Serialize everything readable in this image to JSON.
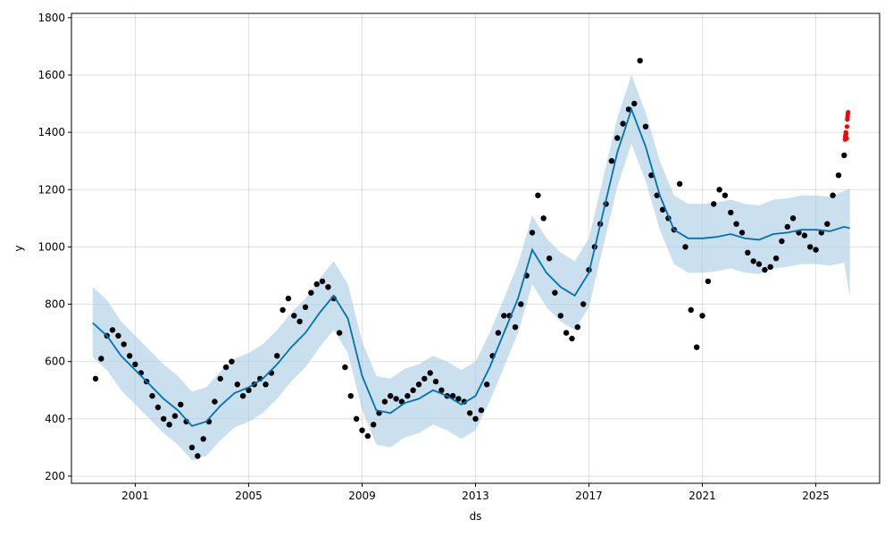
{
  "chart_data": {
    "type": "scatter",
    "xlabel": "ds",
    "ylabel": "y",
    "xlim": [
      1998.75,
      2027.25
    ],
    "ylim": [
      175,
      1815
    ],
    "grid": true,
    "x_ticks": [
      2001,
      2005,
      2009,
      2013,
      2017,
      2021,
      2025
    ],
    "y_ticks": [
      200,
      400,
      600,
      800,
      1000,
      1200,
      1400,
      1600,
      1800
    ],
    "colors": {
      "observed": "#000000",
      "forecast": "#0072b2",
      "interval": "#a6cbe3",
      "outlier": "#ff0000"
    },
    "series": [
      {
        "name": "",
        "kind": "observed",
        "x": [
          1999.6,
          1999.8,
          2000.0,
          2000.2,
          2000.4,
          2000.6,
          2000.8,
          2001.0,
          2001.2,
          2001.4,
          2001.6,
          2001.8,
          2002.0,
          2002.2,
          2002.4,
          2002.6,
          2002.8,
          2003.0,
          2003.2,
          2003.4,
          2003.6,
          2003.8,
          2004.0,
          2004.2,
          2004.4,
          2004.6,
          2004.8,
          2005.0,
          2005.2,
          2005.4,
          2005.6,
          2005.8,
          2006.0,
          2006.2,
          2006.4,
          2006.6,
          2006.8,
          2007.0,
          2007.2,
          2007.4,
          2007.6,
          2007.8,
          2008.0,
          2008.2,
          2008.4,
          2008.6,
          2008.8,
          2009.0,
          2009.2,
          2009.4,
          2009.6,
          2009.8,
          2010.0,
          2010.2,
          2010.4,
          2010.6,
          2010.8,
          2011.0,
          2011.2,
          2011.4,
          2011.6,
          2011.8,
          2012.0,
          2012.2,
          2012.4,
          2012.6,
          2012.8,
          2013.0,
          2013.2,
          2013.4,
          2013.6,
          2013.8,
          2014.0,
          2014.2,
          2014.4,
          2014.6,
          2014.8,
          2015.0,
          2015.2,
          2015.4,
          2015.6,
          2015.8,
          2016.0,
          2016.2,
          2016.4,
          2016.6,
          2016.8,
          2017.0,
          2017.2,
          2017.4,
          2017.6,
          2017.8,
          2018.0,
          2018.2,
          2018.4,
          2018.6,
          2018.8,
          2019.0,
          2019.2,
          2019.4,
          2019.6,
          2019.8,
          2020.0,
          2020.2,
          2020.4,
          2020.6,
          2020.8,
          2021.0,
          2021.2,
          2021.4,
          2021.6,
          2021.8,
          2022.0,
          2022.2,
          2022.4,
          2022.6,
          2022.8,
          2023.0,
          2023.2,
          2023.4,
          2023.6,
          2023.8,
          2024.0,
          2024.2,
          2024.4,
          2024.6,
          2024.8,
          2025.0,
          2025.2,
          2025.4,
          2025.6,
          2025.8,
          2026.0
        ],
        "y": [
          540,
          610,
          690,
          710,
          690,
          660,
          620,
          590,
          560,
          530,
          480,
          440,
          400,
          380,
          410,
          450,
          390,
          300,
          270,
          330,
          390,
          460,
          540,
          580,
          600,
          520,
          480,
          500,
          520,
          540,
          520,
          560,
          620,
          780,
          820,
          760,
          740,
          790,
          840,
          870,
          880,
          860,
          820,
          700,
          580,
          480,
          400,
          360,
          340,
          380,
          420,
          460,
          480,
          470,
          460,
          480,
          500,
          520,
          540,
          560,
          530,
          500,
          480,
          480,
          470,
          460,
          420,
          400,
          430,
          520,
          620,
          700,
          760,
          760,
          720,
          800,
          900,
          1050,
          1180,
          1100,
          960,
          840,
          760,
          700,
          680,
          720,
          800,
          920,
          1000,
          1080,
          1150,
          1300,
          1380,
          1430,
          1480,
          1500,
          1650,
          1420,
          1250,
          1180,
          1130,
          1100,
          1060,
          1220,
          1000,
          780,
          650,
          760,
          880,
          1150,
          1200,
          1180,
          1120,
          1080,
          1050,
          980,
          950,
          940,
          920,
          930,
          960,
          1020,
          1070,
          1100,
          1050,
          1040,
          1000,
          990,
          1050,
          1080,
          1180,
          1250,
          1320
        ]
      },
      {
        "name": "",
        "kind": "outlier",
        "x": [
          2026.03,
          2026.04,
          2026.05,
          2026.06,
          2026.07,
          2026.08,
          2026.09,
          2026.1,
          2026.11,
          2026.12,
          2026.13,
          2026.14
        ],
        "y": [
          1375,
          1385,
          1390,
          1400,
          1395,
          1380,
          1378,
          1420,
          1445,
          1455,
          1465,
          1470
        ]
      },
      {
        "name": "",
        "kind": "forecast",
        "x": [
          1999.5,
          2000.0,
          2000.5,
          2001.0,
          2001.5,
          2002.0,
          2002.5,
          2003.0,
          2003.5,
          2004.0,
          2004.5,
          2005.0,
          2005.5,
          2006.0,
          2006.5,
          2007.0,
          2007.5,
          2008.0,
          2008.5,
          2009.0,
          2009.5,
          2010.0,
          2010.5,
          2011.0,
          2011.5,
          2012.0,
          2012.5,
          2013.0,
          2013.5,
          2014.0,
          2014.5,
          2015.0,
          2015.5,
          2016.0,
          2016.5,
          2017.0,
          2017.5,
          2018.0,
          2018.5,
          2019.0,
          2019.5,
          2020.0,
          2020.5,
          2021.0,
          2021.5,
          2022.0,
          2022.5,
          2023.0,
          2023.5,
          2024.0,
          2024.5,
          2025.0,
          2025.5,
          2026.0,
          2026.2
        ],
        "y": [
          735,
          690,
          620,
          570,
          520,
          470,
          430,
          375,
          390,
          445,
          490,
          510,
          540,
          590,
          650,
          700,
          770,
          830,
          750,
          550,
          430,
          420,
          455,
          470,
          500,
          480,
          450,
          480,
          580,
          700,
          820,
          990,
          910,
          860,
          830,
          910,
          1120,
          1330,
          1480,
          1350,
          1180,
          1060,
          1030,
          1030,
          1035,
          1045,
          1030,
          1025,
          1045,
          1050,
          1060,
          1060,
          1055,
          1070,
          1065
        ]
      },
      {
        "name": "",
        "kind": "interval_upper",
        "x": [
          1999.5,
          2000.0,
          2000.5,
          2001.0,
          2001.5,
          2002.0,
          2002.5,
          2003.0,
          2003.5,
          2004.0,
          2004.5,
          2005.0,
          2005.5,
          2006.0,
          2006.5,
          2007.0,
          2007.5,
          2008.0,
          2008.5,
          2009.0,
          2009.5,
          2010.0,
          2010.5,
          2011.0,
          2011.5,
          2012.0,
          2012.5,
          2013.0,
          2013.5,
          2014.0,
          2014.5,
          2015.0,
          2015.5,
          2016.0,
          2016.5,
          2017.0,
          2017.5,
          2018.0,
          2018.5,
          2019.0,
          2019.5,
          2020.0,
          2020.5,
          2021.0,
          2021.5,
          2022.0,
          2022.5,
          2023.0,
          2023.5,
          2024.0,
          2024.5,
          2025.0,
          2025.5,
          2026.0,
          2026.2
        ],
        "y": [
          860,
          815,
          740,
          690,
          640,
          590,
          550,
          495,
          510,
          565,
          610,
          630,
          660,
          710,
          770,
          820,
          890,
          950,
          870,
          670,
          550,
          540,
          575,
          590,
          620,
          600,
          570,
          600,
          700,
          820,
          940,
          1110,
          1030,
          980,
          950,
          1030,
          1240,
          1450,
          1600,
          1470,
          1300,
          1180,
          1150,
          1150,
          1155,
          1165,
          1150,
          1145,
          1165,
          1170,
          1180,
          1180,
          1175,
          1195,
          1205
        ]
      },
      {
        "name": "",
        "kind": "interval_lower",
        "x": [
          1999.5,
          2000.0,
          2000.5,
          2001.0,
          2001.5,
          2002.0,
          2002.5,
          2003.0,
          2003.5,
          2004.0,
          2004.5,
          2005.0,
          2005.5,
          2006.0,
          2006.5,
          2007.0,
          2007.5,
          2008.0,
          2008.5,
          2009.0,
          2009.5,
          2010.0,
          2010.5,
          2011.0,
          2011.5,
          2012.0,
          2012.5,
          2013.0,
          2013.5,
          2014.0,
          2014.5,
          2015.0,
          2015.5,
          2016.0,
          2016.5,
          2017.0,
          2017.5,
          2018.0,
          2018.5,
          2019.0,
          2019.5,
          2020.0,
          2020.5,
          2021.0,
          2021.5,
          2022.0,
          2022.5,
          2023.0,
          2023.5,
          2024.0,
          2024.5,
          2025.0,
          2025.5,
          2026.0,
          2026.2
        ],
        "y": [
          615,
          570,
          500,
          450,
          400,
          350,
          310,
          255,
          270,
          325,
          370,
          390,
          420,
          470,
          530,
          580,
          650,
          710,
          630,
          430,
          310,
          300,
          335,
          350,
          380,
          360,
          330,
          360,
          460,
          580,
          700,
          870,
          790,
          740,
          710,
          790,
          1000,
          1210,
          1360,
          1230,
          1060,
          940,
          910,
          910,
          915,
          925,
          910,
          905,
          925,
          930,
          940,
          940,
          935,
          945,
          825
        ]
      }
    ]
  }
}
